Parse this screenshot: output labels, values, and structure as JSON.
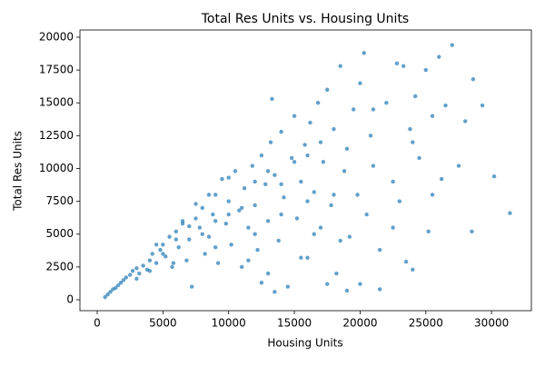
{
  "chart_data": {
    "type": "scatter",
    "title": "Total Res Units vs. Housing Units",
    "x_label": "Housing Units",
    "y_label": "Total Res Units",
    "color": "#1f77b4",
    "grid": false,
    "xlim": [
      -1313,
      33030
    ],
    "ylim": [
      -830,
      20550
    ],
    "xticks": [
      0,
      5000,
      10000,
      15000,
      20000,
      25000,
      30000
    ],
    "yticks": [
      0,
      2500,
      5000,
      7500,
      10000,
      12500,
      15000,
      17500,
      20000
    ],
    "x": [
      600,
      800,
      1000,
      1200,
      1400,
      1600,
      1800,
      2000,
      2200,
      2500,
      2700,
      3000,
      3200,
      3500,
      3800,
      4000,
      4200,
      4500,
      4800,
      5000,
      5200,
      5500,
      5700,
      6000,
      6200,
      6500,
      6800,
      7000,
      7200,
      7500,
      7800,
      8000,
      8200,
      8500,
      8800,
      9000,
      9200,
      9500,
      9800,
      10000,
      10200,
      10500,
      10800,
      11000,
      11200,
      11500,
      11800,
      12000,
      12200,
      12500,
      12800,
      13000,
      13200,
      13300,
      13500,
      13800,
      14000,
      14200,
      14500,
      14800,
      15000,
      15200,
      15500,
      15800,
      16000,
      16200,
      16500,
      16800,
      17000,
      17200,
      17500,
      17800,
      18000,
      18200,
      18500,
      18800,
      19000,
      19200,
      19500,
      19800,
      20000,
      20300,
      20500,
      20800,
      21000,
      21500,
      21500,
      22000,
      22500,
      22800,
      23000,
      23300,
      23500,
      23800,
      24000,
      24200,
      24500,
      25000,
      25200,
      25500,
      26000,
      26200,
      26500,
      27000,
      27500,
      28000,
      28500,
      28600,
      29300,
      30200,
      31400,
      3000,
      4000,
      5000,
      6000,
      7000,
      8000,
      9000,
      10000,
      11000,
      12000,
      13000,
      14000,
      15000,
      16000,
      17000,
      18000,
      12000,
      14000,
      16000,
      10000,
      13000,
      11500,
      9000,
      8500,
      7500,
      6500,
      4500,
      5800,
      15500,
      17500,
      19000,
      20000,
      22500,
      24000,
      25500,
      21000,
      13500,
      12500,
      16500,
      18500
    ],
    "y": [
      200,
      400,
      600,
      800,
      900,
      1100,
      1300,
      1500,
      1700,
      1900,
      2200,
      2400,
      2000,
      2600,
      2300,
      3000,
      3500,
      2800,
      3800,
      4200,
      3300,
      4800,
      2500,
      5200,
      4000,
      5800,
      3000,
      4600,
      1000,
      6200,
      5500,
      7000,
      3500,
      4800,
      6500,
      8000,
      2800,
      9200,
      5800,
      7500,
      4200,
      9800,
      6800,
      2500,
      8500,
      5500,
      10200,
      7200,
      3800,
      11000,
      8800,
      6000,
      12000,
      15300,
      9500,
      4500,
      12800,
      7800,
      1000,
      10800,
      14000,
      6200,
      9000,
      11800,
      3200,
      13500,
      8200,
      15000,
      5500,
      10500,
      16000,
      7200,
      13000,
      2000,
      17800,
      9800,
      11500,
      4800,
      14500,
      8000,
      16500,
      18800,
      6500,
      12500,
      10200,
      800,
      3800,
      15000,
      9000,
      18000,
      7500,
      17800,
      2900,
      13000,
      2300,
      15500,
      10800,
      17500,
      5200,
      14000,
      18500,
      9200,
      14800,
      19400,
      10200,
      13600,
      5200,
      16800,
      14800,
      9400,
      6600,
      1600,
      2200,
      3500,
      4600,
      5600,
      5000,
      6000,
      6500,
      7000,
      9000,
      9800,
      8800,
      10500,
      11000,
      12000,
      8000,
      5000,
      6500,
      7500,
      9300,
      2000,
      3000,
      4000,
      8000,
      7300,
      6000,
      4200,
      2800,
      3200,
      1200,
      700,
      1200,
      5500,
      12000,
      8000,
      14500,
      600,
      1300,
      5000,
      4500
    ]
  }
}
